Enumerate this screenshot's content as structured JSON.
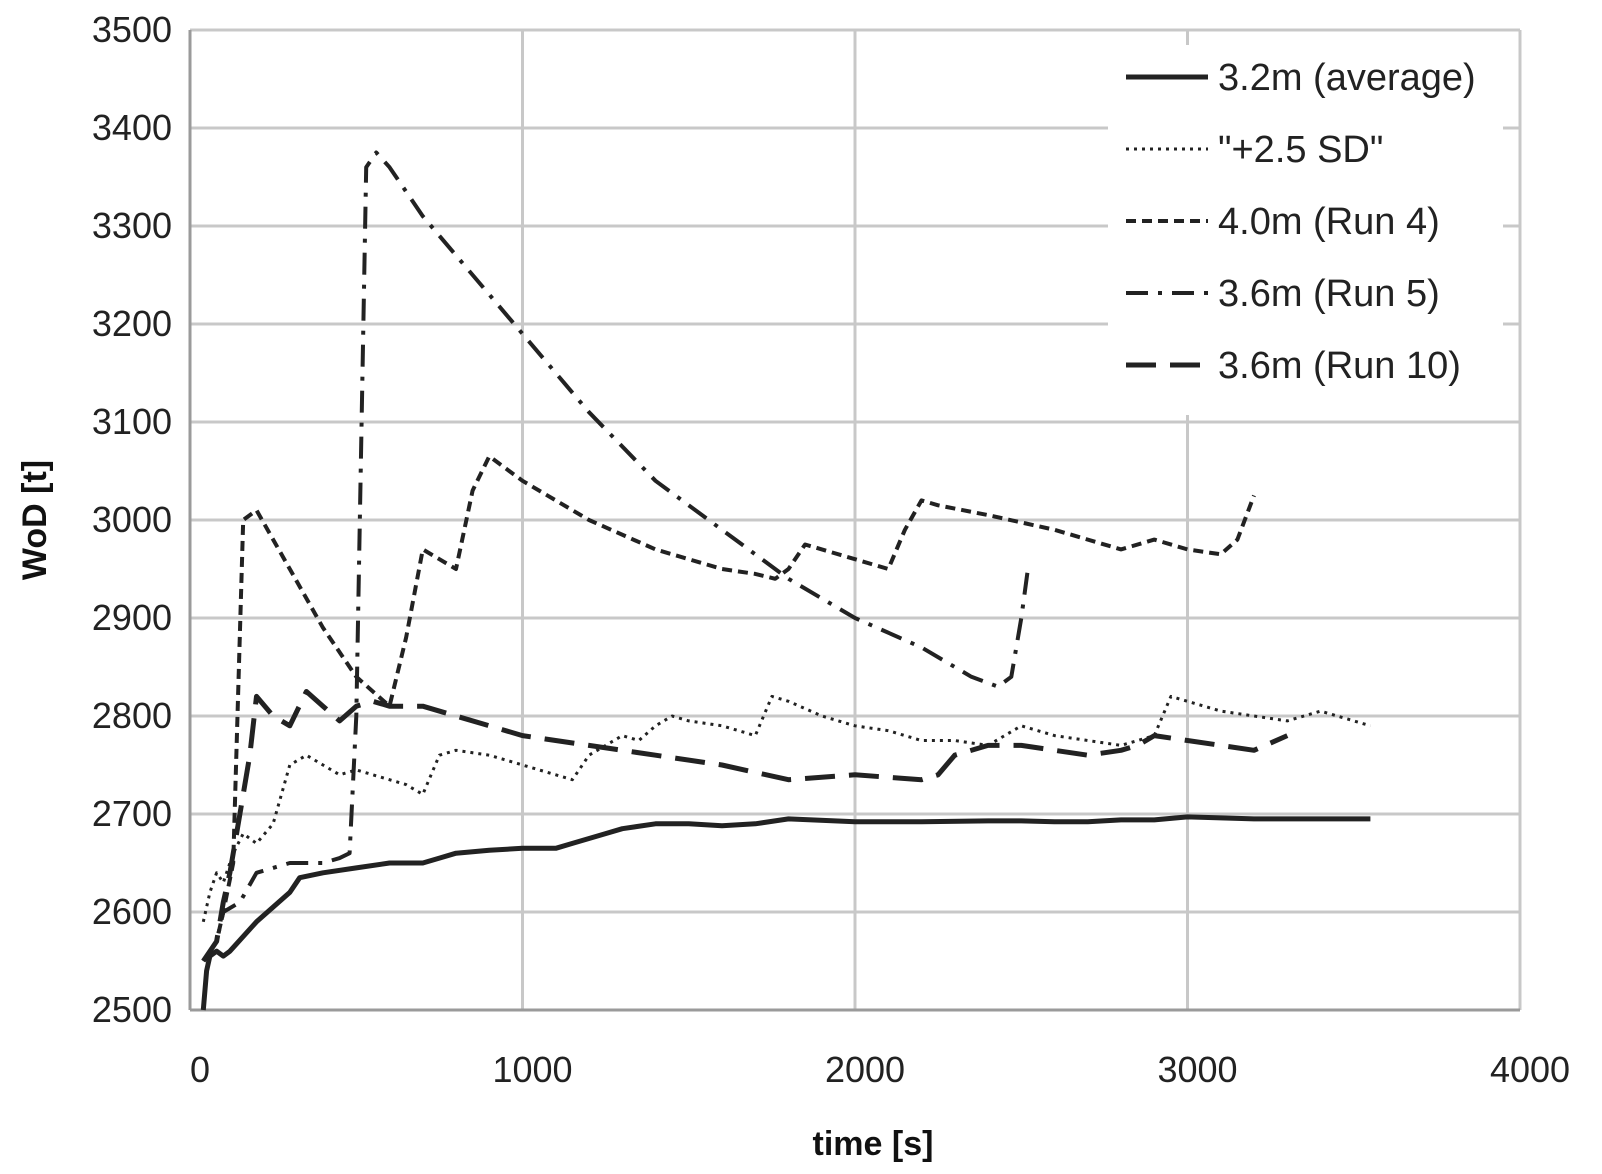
{
  "chart_data": {
    "type": "line",
    "xlabel": "time [s]",
    "ylabel": "WoD [t]",
    "xlim": [
      0,
      4000
    ],
    "ylim": [
      2500,
      3500
    ],
    "x_ticks": [
      "0",
      "1000",
      "2000",
      "3000",
      "4000"
    ],
    "y_ticks": [
      "2500",
      "2600",
      "2700",
      "2800",
      "2900",
      "3000",
      "3100",
      "3200",
      "3300",
      "3400",
      "3500"
    ],
    "grid": true,
    "legend_position": "top-right",
    "series": [
      {
        "name": "3.2m (average)",
        "style": "solid",
        "x": [
          40,
          50,
          60,
          80,
          100,
          120,
          200,
          300,
          330,
          400,
          500,
          600,
          700,
          750,
          800,
          900,
          1000,
          1100,
          1150,
          1250,
          1300,
          1400,
          1500,
          1600,
          1700,
          1800,
          2000,
          2200,
          2400,
          2500,
          2600,
          2700,
          2800,
          2900,
          3000,
          3100,
          3200,
          3300,
          3400,
          3500,
          3550
        ],
        "y": [
          2500,
          2540,
          2555,
          2560,
          2555,
          2560,
          2590,
          2620,
          2635,
          2640,
          2645,
          2650,
          2650,
          2655,
          2660,
          2663,
          2665,
          2665,
          2670,
          2680,
          2685,
          2690,
          2690,
          2688,
          2690,
          2695,
          2692,
          2692,
          2693,
          2693,
          2692,
          2692,
          2694,
          2694,
          2697,
          2696,
          2695,
          2695,
          2695,
          2695,
          2695
        ]
      },
      {
        "name": "\"+2.5 SD\"",
        "style": "dotted",
        "x": [
          40,
          60,
          80,
          100,
          130,
          160,
          200,
          250,
          300,
          350,
          400,
          450,
          500,
          550,
          600,
          650,
          700,
          750,
          800,
          900,
          1000,
          1100,
          1150,
          1200,
          1300,
          1350,
          1400,
          1450,
          1500,
          1600,
          1700,
          1750,
          1800,
          1900,
          2000,
          2100,
          2200,
          2300,
          2400,
          2500,
          2600,
          2700,
          2800,
          2900,
          2950,
          3000,
          3100,
          3200,
          3300,
          3400,
          3550
        ],
        "y": [
          2590,
          2620,
          2640,
          2630,
          2660,
          2680,
          2670,
          2690,
          2750,
          2760,
          2750,
          2740,
          2745,
          2740,
          2735,
          2730,
          2720,
          2760,
          2765,
          2760,
          2750,
          2740,
          2735,
          2760,
          2780,
          2775,
          2790,
          2800,
          2795,
          2790,
          2780,
          2820,
          2815,
          2800,
          2790,
          2785,
          2775,
          2775,
          2770,
          2790,
          2780,
          2775,
          2770,
          2780,
          2820,
          2815,
          2805,
          2800,
          2795,
          2805,
          2790
        ]
      },
      {
        "name": "4.0m (Run 4)",
        "style": "dashed",
        "x": [
          40,
          60,
          80,
          100,
          130,
          160,
          200,
          300,
          400,
          500,
          600,
          650,
          700,
          750,
          800,
          850,
          900,
          1000,
          1200,
          1400,
          1600,
          1700,
          1760,
          1800,
          1850,
          2000,
          2100,
          2150,
          2200,
          2250,
          2400,
          2600,
          2800,
          2900,
          3000,
          3100,
          3150,
          3200
        ],
        "y": [
          2550,
          2560,
          2570,
          2600,
          2650,
          3000,
          3010,
          2950,
          2890,
          2840,
          2810,
          2880,
          2970,
          2960,
          2950,
          3030,
          3065,
          3040,
          3000,
          2970,
          2950,
          2945,
          2940,
          2950,
          2975,
          2960,
          2950,
          2990,
          3020,
          3015,
          3005,
          2990,
          2970,
          2980,
          2970,
          2965,
          2980,
          3025
        ]
      },
      {
        "name": "3.6m (Run 5)",
        "style": "dash-dot",
        "x": [
          40,
          80,
          100,
          150,
          200,
          250,
          300,
          400,
          450,
          480,
          500,
          530,
          560,
          600,
          700,
          800,
          900,
          1000,
          1200,
          1400,
          1600,
          1800,
          2000,
          2200,
          2350,
          2430,
          2470,
          2500,
          2520
        ],
        "y": [
          2550,
          2570,
          2600,
          2610,
          2640,
          2645,
          2650,
          2650,
          2655,
          2660,
          2800,
          3360,
          3375,
          3360,
          3310,
          3270,
          3230,
          3190,
          3110,
          3040,
          2990,
          2940,
          2900,
          2870,
          2840,
          2830,
          2840,
          2900,
          2950
        ]
      },
      {
        "name": "3.6m (Run 10)",
        "style": "long-dash",
        "x": [
          40,
          80,
          100,
          120,
          150,
          180,
          200,
          250,
          300,
          350,
          400,
          450,
          500,
          550,
          600,
          700,
          800,
          1000,
          1200,
          1400,
          1600,
          1800,
          2000,
          2200,
          2250,
          2300,
          2400,
          2500,
          2600,
          2700,
          2800,
          2850,
          2900,
          3000,
          3100,
          3200,
          3300
        ],
        "y": [
          2550,
          2570,
          2610,
          2640,
          2700,
          2760,
          2820,
          2800,
          2790,
          2825,
          2810,
          2795,
          2810,
          2815,
          2810,
          2810,
          2800,
          2780,
          2770,
          2760,
          2750,
          2735,
          2740,
          2735,
          2740,
          2760,
          2770,
          2770,
          2765,
          2760,
          2765,
          2770,
          2780,
          2775,
          2770,
          2765,
          2780
        ]
      }
    ]
  }
}
